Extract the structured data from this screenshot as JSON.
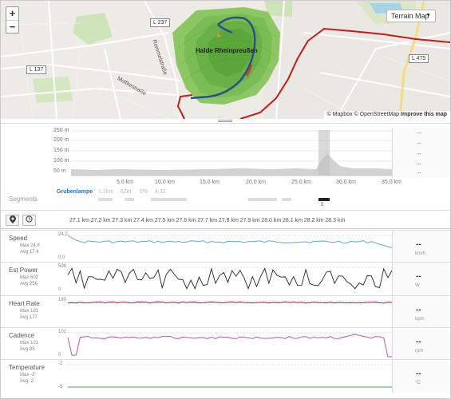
{
  "map": {
    "zoom_in": "+",
    "zoom_out": "−",
    "terrain_button": "Terrain Map",
    "roads": [
      "L 237",
      "L 137",
      "L 475"
    ],
    "streets": [
      "Rommelstraße",
      "Moltkestraße",
      "Halde Rheinpreußen"
    ],
    "attribution": {
      "mapbox": "© Mapbox",
      "osm": "© OpenStreetMap",
      "improve": "Improve this map"
    }
  },
  "elevation": {
    "y_ticks": [
      "250 m",
      "200 m",
      "150 m",
      "100 m",
      "50 m"
    ],
    "x_ticks": [
      "5.0 km",
      "10.0 km",
      "15.0 km",
      "20.0 km",
      "25.0 km",
      "30.0 km",
      "35.0 km"
    ],
    "side_values": [
      "--",
      "--",
      "--",
      "--",
      "--"
    ]
  },
  "segments": {
    "label": "Segments",
    "name": "Grubenlampe",
    "distance": "1.2km",
    "elevation": "62m",
    "grade": "5%",
    "time": "4:32",
    "marker": "5"
  },
  "stream_header": {
    "km_ticks": [
      "27.1 km",
      "27.2 km",
      "27.3 km",
      "27.4 km",
      "27.5 km",
      "27.6 km",
      "27.7 km",
      "27.8 km",
      "27.9 km",
      "28.0 km",
      "28.1 km",
      "28.2 km",
      "28.3 km"
    ]
  },
  "streams": [
    {
      "name": "Speed",
      "max": "Max 24.8",
      "avg": "Avg 17.4",
      "top": "24.2",
      "bottom": "0.0",
      "value": "--",
      "unit": "km/h",
      "color": "#5aa9d6"
    },
    {
      "name": "Est Power",
      "max": "Max 602",
      "avg": "Avg 256",
      "top": "598",
      "bottom": "0",
      "value": "--",
      "unit": "W",
      "color": "#222222"
    },
    {
      "name": "Heart Rate",
      "max": "Max 181",
      "avg": "Avg 177",
      "top": "180",
      "bottom": "",
      "value": "--",
      "unit": "bpm",
      "color": "#9b2040"
    },
    {
      "name": "Cadence",
      "max": "Max 101",
      "avg": "Avg 85",
      "top": "101",
      "bottom": "0",
      "value": "--",
      "unit": "rpm",
      "color": "#b450b8"
    },
    {
      "name": "Temperature",
      "max": "Max -2",
      "avg": "Avg -2",
      "top": "-2",
      "bottom": "-5",
      "value": "--",
      "unit": "°C",
      "color": "#50a050"
    }
  ]
}
